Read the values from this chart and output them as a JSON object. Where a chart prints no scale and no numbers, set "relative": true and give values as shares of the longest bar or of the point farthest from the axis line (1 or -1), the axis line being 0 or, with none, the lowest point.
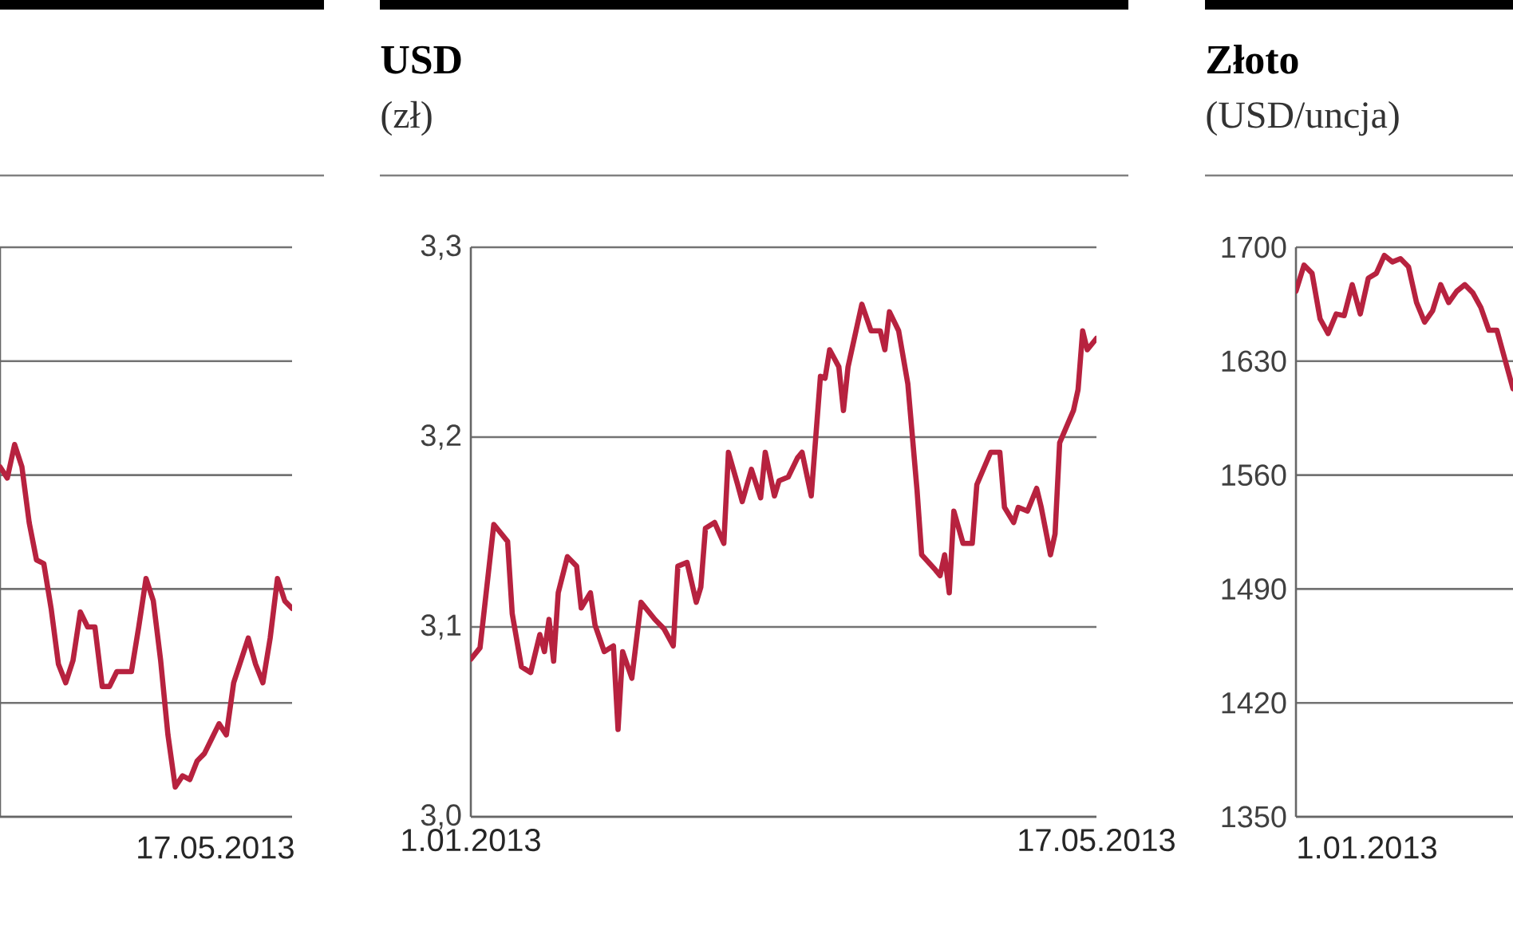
{
  "chart_data": [
    {
      "type": "line",
      "relative": true,
      "color": "#b7223f",
      "grid": "y",
      "categories": [
        null,
        null,
        null,
        null,
        null,
        null,
        null,
        null,
        null,
        null,
        null,
        null,
        null,
        null,
        null,
        null,
        null,
        null,
        null,
        null,
        null,
        null,
        null,
        null,
        null,
        null,
        null,
        null,
        null,
        null,
        null,
        null,
        null,
        null,
        null,
        null,
        null,
        null,
        null,
        null,
        null
      ],
      "values": [
        0.94,
        0.91,
        1,
        0.94,
        0.79,
        0.69,
        0.68,
        0.56,
        0.41,
        0.36,
        0.42,
        0.55,
        0.51,
        0.51,
        0.35,
        0.35,
        0.39,
        0.39,
        0.39,
        0.51,
        0.64,
        0.58,
        0.42,
        0.22,
        0.08,
        0.11,
        0.1,
        0.15,
        0.17,
        0.21,
        0.25,
        0.22,
        0.36,
        0.42,
        0.48,
        0.41,
        0.36,
        0.48,
        0.64,
        0.58,
        0.56
      ],
      "annotations": [
        "17.05.2013"
      ]
    },
    {
      "type": "line",
      "title": "USD",
      "subtitle": "(zł)",
      "color": "#b7223f",
      "grid": "y",
      "x": [
        "2013-01-01",
        "2013-01-03",
        "2013-01-06",
        "2013-01-09",
        "2013-01-10",
        "2013-01-12",
        "2013-01-14",
        "2013-01-16",
        "2013-01-17",
        "2013-01-18",
        "2013-01-19",
        "2013-01-20",
        "2013-01-22",
        "2013-01-24",
        "2013-01-25",
        "2013-01-27",
        "2013-01-28",
        "2013-01-30",
        "2013-02-01",
        "2013-02-02",
        "2013-02-03",
        "2013-02-05",
        "2013-02-07",
        "2013-02-10",
        "2013-02-12",
        "2013-02-14",
        "2013-02-15",
        "2013-02-17",
        "2013-02-19",
        "2013-02-20",
        "2013-02-21",
        "2013-02-23",
        "2013-02-25",
        "2013-02-26",
        "2013-02-28",
        "2013-03-01",
        "2013-03-03",
        "2013-03-05",
        "2013-03-06",
        "2013-03-08",
        "2013-03-09",
        "2013-03-11",
        "2013-03-13",
        "2013-03-14",
        "2013-03-16",
        "2013-03-18",
        "2013-03-19",
        "2013-03-20",
        "2013-03-22",
        "2013-03-23",
        "2013-03-24",
        "2013-03-26",
        "2013-03-27",
        "2013-03-29",
        "2013-03-31",
        "2013-04-01",
        "2013-04-02",
        "2013-04-04",
        "2013-04-06",
        "2013-04-08",
        "2013-04-09",
        "2013-04-12",
        "2013-04-13",
        "2013-04-14",
        "2013-04-15",
        "2013-04-16",
        "2013-04-18",
        "2013-04-20",
        "2013-04-21",
        "2013-04-24",
        "2013-04-26",
        "2013-04-27",
        "2013-04-29",
        "2013-04-30",
        "2013-05-02",
        "2013-05-04",
        "2013-05-05",
        "2013-05-07",
        "2013-05-08",
        "2013-05-09",
        "2013-05-12",
        "2013-05-13",
        "2013-05-14",
        "2013-05-15",
        "2013-05-17"
      ],
      "values": [
        3.083,
        3.089,
        3.154,
        3.145,
        3.107,
        3.079,
        3.076,
        3.096,
        3.087,
        3.104,
        3.082,
        3.118,
        3.137,
        3.132,
        3.11,
        3.118,
        3.101,
        3.087,
        3.09,
        3.046,
        3.087,
        3.073,
        3.113,
        3.104,
        3.099,
        3.09,
        3.132,
        3.134,
        3.113,
        3.121,
        3.152,
        3.155,
        3.144,
        3.192,
        3.175,
        3.166,
        3.183,
        3.168,
        3.192,
        3.169,
        3.177,
        3.179,
        3.189,
        3.192,
        3.169,
        3.232,
        3.231,
        3.246,
        3.237,
        3.214,
        3.237,
        3.259,
        3.27,
        3.256,
        3.256,
        3.246,
        3.266,
        3.256,
        3.228,
        3.172,
        3.138,
        3.13,
        3.127,
        3.138,
        3.118,
        3.161,
        3.144,
        3.144,
        3.175,
        3.192,
        3.192,
        3.163,
        3.155,
        3.163,
        3.161,
        3.173,
        3.163,
        3.138,
        3.149,
        3.197,
        3.214,
        3.225,
        3.256,
        3.246,
        3.252
      ],
      "xlim": [
        "2013-01-01",
        "2013-05-17"
      ],
      "xticks": [
        {
          "value": "2013-01-01",
          "label": "1.01.2013"
        },
        {
          "value": "2013-05-17",
          "label": "17.05.2013"
        }
      ],
      "ylim": [
        3.0,
        3.3
      ],
      "yticks": [
        {
          "value": 3.0,
          "label": "3,0"
        },
        {
          "value": 3.1,
          "label": "3,1"
        },
        {
          "value": 3.2,
          "label": "3,2"
        },
        {
          "value": 3.3,
          "label": "3,3"
        }
      ]
    },
    {
      "type": "line",
      "title": "Złoto",
      "subtitle": "(USD/uncja)",
      "color": "#b7223f",
      "grid": "y",
      "categories": [
        null,
        null,
        null,
        null,
        null,
        null,
        null,
        null,
        null,
        null,
        null,
        null,
        null,
        null,
        null,
        null,
        null,
        null,
        null,
        null,
        null,
        null,
        null,
        null,
        null,
        null,
        null,
        null
      ],
      "values": [
        1673,
        1689,
        1684,
        1656,
        1647,
        1659,
        1658,
        1677,
        1659,
        1681,
        1684,
        1695,
        1691,
        1693,
        1688,
        1666,
        1654,
        1661,
        1677,
        1666,
        1673,
        1677,
        1672,
        1663,
        1649,
        1649,
        1631,
        1613
      ],
      "annotations": [
        "1.01.2013"
      ],
      "ylim": [
        1350,
        1700
      ],
      "yticks": [
        {
          "value": 1350,
          "label": "1350"
        },
        {
          "value": 1420,
          "label": "1420"
        },
        {
          "value": 1490,
          "label": "1490"
        },
        {
          "value": 1560,
          "label": "1560"
        },
        {
          "value": 1630,
          "label": "1630"
        },
        {
          "value": 1700,
          "label": "1700"
        }
      ]
    }
  ]
}
